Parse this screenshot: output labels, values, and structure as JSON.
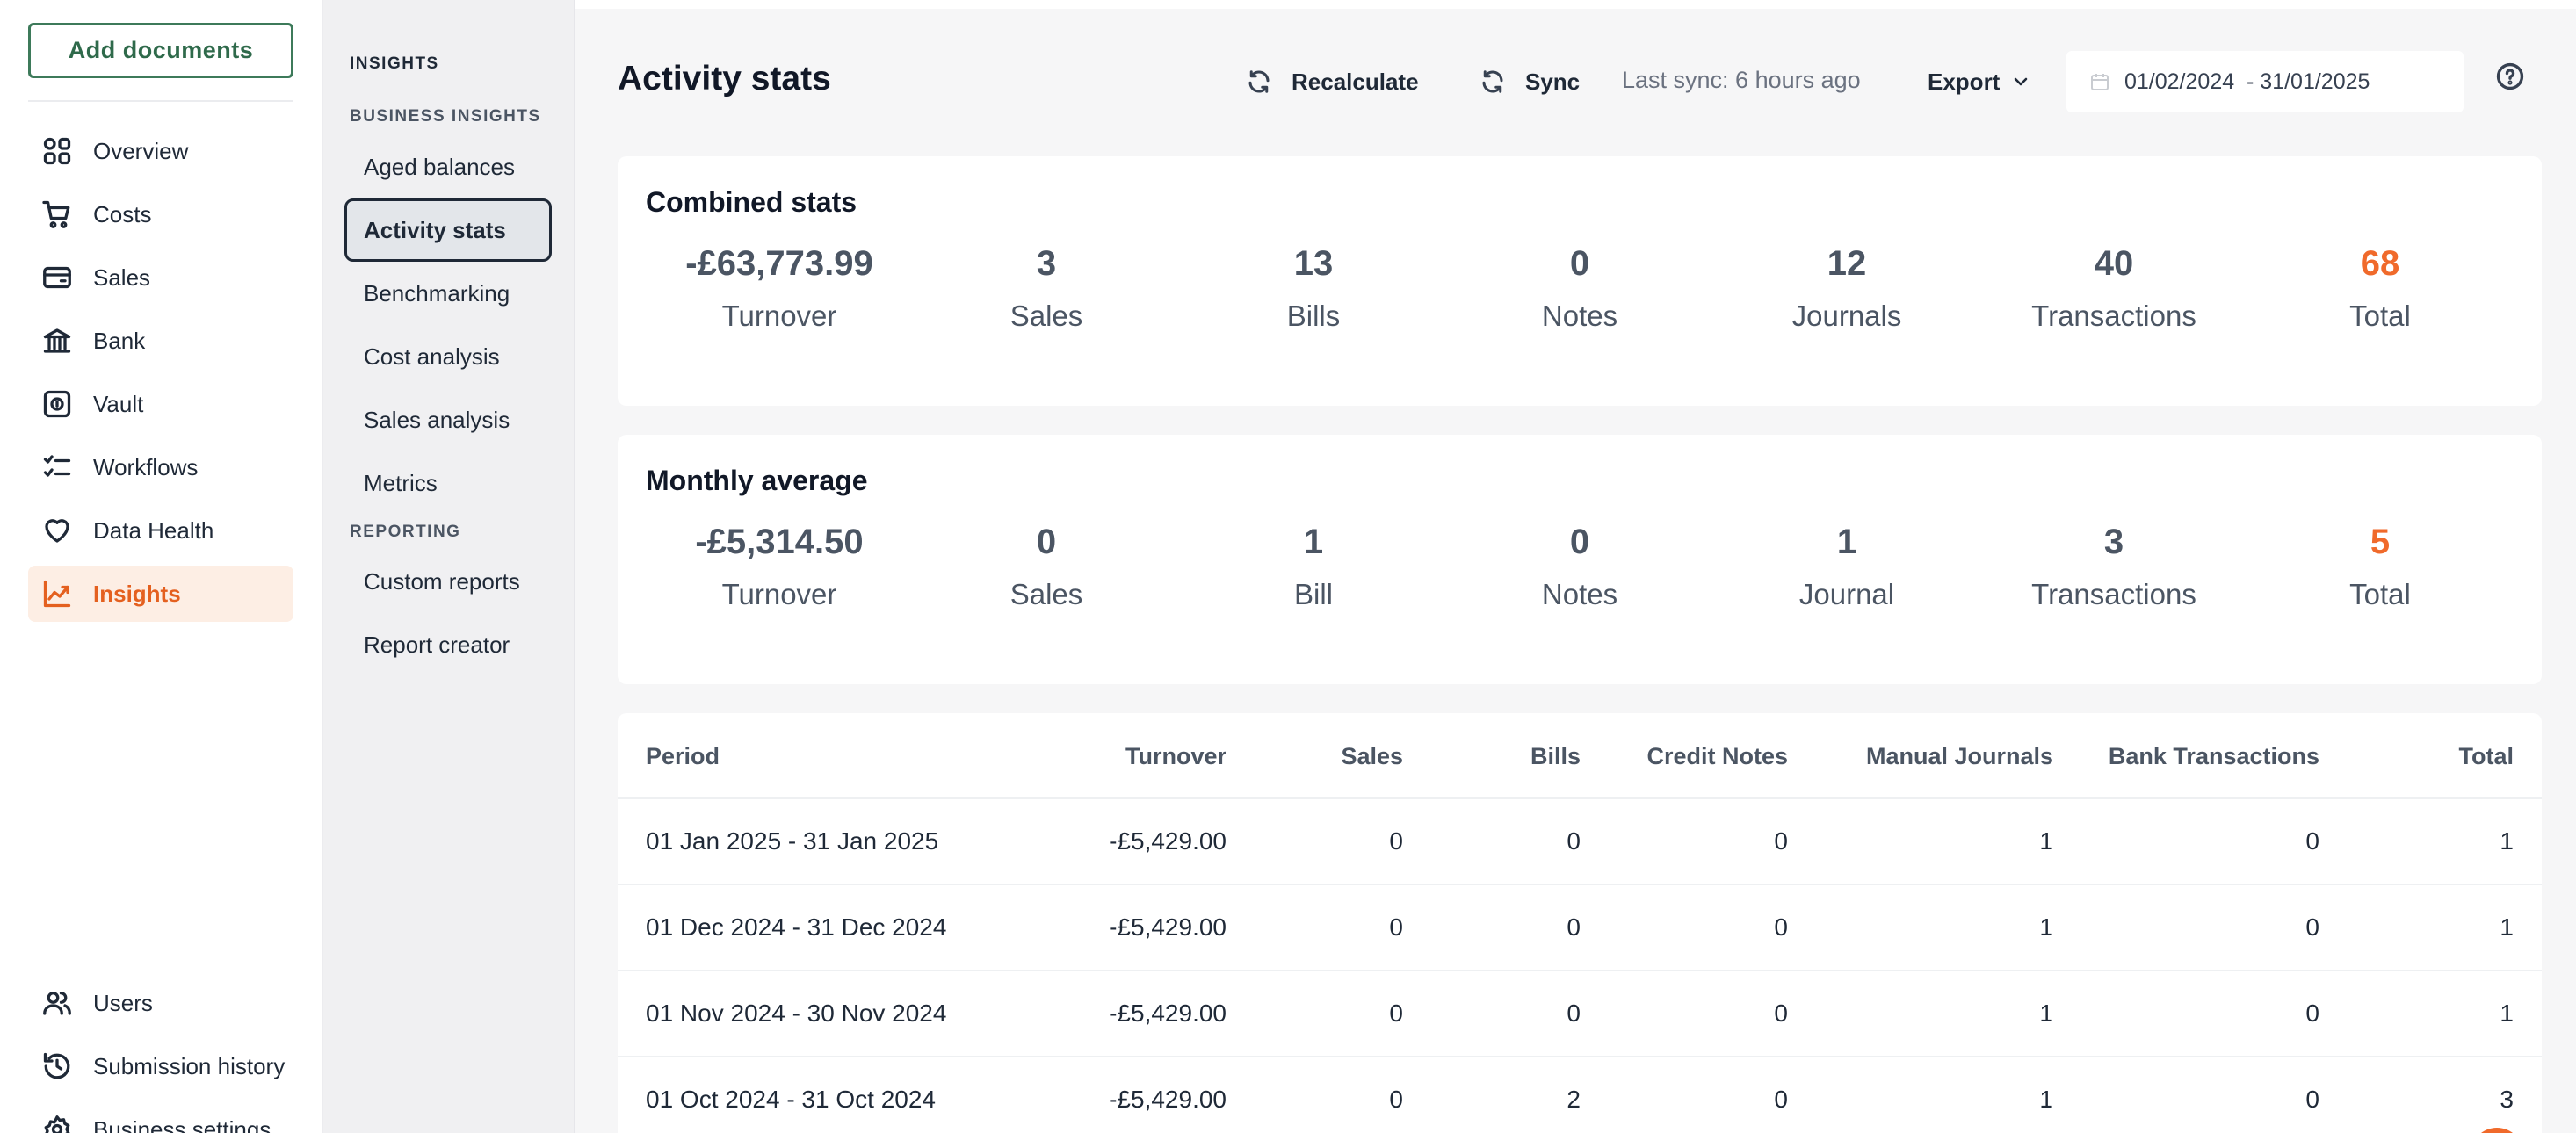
{
  "sidebar": {
    "add_documents": "Add documents",
    "items": [
      {
        "label": "Overview",
        "icon": "overview-icon"
      },
      {
        "label": "Costs",
        "icon": "cart-icon"
      },
      {
        "label": "Sales",
        "icon": "wallet-icon"
      },
      {
        "label": "Bank",
        "icon": "bank-icon"
      },
      {
        "label": "Vault",
        "icon": "vault-icon"
      },
      {
        "label": "Workflows",
        "icon": "checklist-icon"
      },
      {
        "label": "Data Health",
        "icon": "heart-icon"
      },
      {
        "label": "Insights",
        "icon": "chart-line-icon",
        "active": true
      }
    ],
    "bottom_items": [
      {
        "label": "Users",
        "icon": "users-icon"
      },
      {
        "label": "Submission history",
        "icon": "history-icon"
      },
      {
        "label": "Business settings",
        "icon": "gear-icon"
      }
    ]
  },
  "subnav": {
    "heading": "INSIGHTS",
    "section_business": "BUSINESS INSIGHTS",
    "business_items": [
      "Aged balances",
      "Activity stats",
      "Benchmarking",
      "Cost analysis",
      "Sales analysis",
      "Metrics"
    ],
    "active_item": "Activity stats",
    "section_reporting": "REPORTING",
    "reporting_items": [
      "Custom reports",
      "Report creator"
    ]
  },
  "header": {
    "title": "Activity stats",
    "recalculate": "Recalculate",
    "sync": "Sync",
    "last_sync": "Last sync: 6 hours ago",
    "export": "Export",
    "date_range": "01/02/2024  - 31/01/2025"
  },
  "combined": {
    "title": "Combined stats",
    "stats": [
      {
        "value": "-£63,773.99",
        "label": "Turnover"
      },
      {
        "value": "3",
        "label": "Sales"
      },
      {
        "value": "13",
        "label": "Bills"
      },
      {
        "value": "0",
        "label": "Notes"
      },
      {
        "value": "12",
        "label": "Journals"
      },
      {
        "value": "40",
        "label": "Transactions"
      },
      {
        "value": "68",
        "label": "Total"
      }
    ]
  },
  "monthly": {
    "title": "Monthly average",
    "stats": [
      {
        "value": "-£5,314.50",
        "label": "Turnover"
      },
      {
        "value": "0",
        "label": "Sales"
      },
      {
        "value": "1",
        "label": "Bill"
      },
      {
        "value": "0",
        "label": "Notes"
      },
      {
        "value": "1",
        "label": "Journal"
      },
      {
        "value": "3",
        "label": "Transactions"
      },
      {
        "value": "5",
        "label": "Total"
      }
    ]
  },
  "accent_color": "#f06a2b",
  "table": {
    "columns": [
      "Period",
      "Turnover",
      "Sales",
      "Bills",
      "Credit Notes",
      "Manual Journals",
      "Bank Transactions",
      "Total"
    ],
    "rows": [
      [
        "01 Jan 2025 - 31 Jan 2025",
        "-£5,429.00",
        "0",
        "0",
        "0",
        "1",
        "0",
        "1"
      ],
      [
        "01 Dec 2024 - 31 Dec 2024",
        "-£5,429.00",
        "0",
        "0",
        "0",
        "1",
        "0",
        "1"
      ],
      [
        "01 Nov 2024 - 30 Nov 2024",
        "-£5,429.00",
        "0",
        "0",
        "0",
        "1",
        "0",
        "1"
      ],
      [
        "01 Oct 2024 - 31 Oct 2024",
        "-£5,429.00",
        "0",
        "2",
        "0",
        "1",
        "0",
        "3"
      ]
    ]
  }
}
